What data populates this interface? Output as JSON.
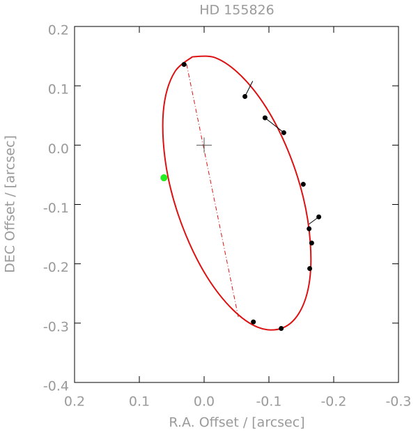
{
  "chart_data": {
    "type": "scatter",
    "title": "HD 155826",
    "xlabel": "R.A. Offset / [arcsec]",
    "ylabel": "DEC Offset / [arcsec]",
    "xlim": [
      0.2,
      -0.3
    ],
    "ylim": [
      -0.4,
      0.2
    ],
    "xticks": [
      0.2,
      0.1,
      {
        "value": 0,
        "label": "0.0"
      },
      -0.1,
      -0.2,
      -0.3
    ],
    "yticks": [
      -0.4,
      -0.3,
      -0.2,
      -0.1,
      {
        "value": 0,
        "label": "0.0"
      },
      0.1,
      0.2
    ],
    "series": [
      {
        "color": "#000000",
        "x": [
          0.031,
          -0.063,
          -0.094,
          -0.123,
          -0.153,
          -0.177,
          -0.162,
          -0.166,
          -0.163,
          -0.076,
          -0.119
        ],
        "y": [
          0.136,
          0.082,
          0.046,
          0.021,
          -0.066,
          -0.121,
          -0.141,
          -0.165,
          -0.208,
          -0.298,
          -0.309
        ]
      },
      {
        "color": "#22ee22",
        "x": [
          0.062
        ],
        "y": [
          -0.055
        ]
      }
    ],
    "orbit": {
      "color": "#dd1111",
      "x": [
        0.018,
        -0.018,
        -0.057,
        -0.096,
        -0.129,
        -0.153,
        -0.164,
        -0.162,
        -0.146,
        -0.119,
        -0.083,
        -0.044,
        -0.005,
        0.028,
        0.052,
        0.063,
        0.061,
        0.045,
        0.018
      ],
      "y": [
        0.149,
        0.147,
        0.117,
        0.063,
        -0.008,
        -0.088,
        -0.166,
        -0.234,
        -0.284,
        -0.309,
        -0.307,
        -0.277,
        -0.223,
        -0.152,
        -0.072,
        0.006,
        0.074,
        0.124,
        0.149
      ]
    },
    "residuals": [
      {
        "x": [
          -0.063,
          -0.075
        ],
        "y": [
          0.082,
          0.108
        ]
      },
      {
        "x": [
          -0.094,
          -0.123
        ],
        "y": [
          0.046,
          0.021
        ]
      },
      {
        "x": [
          -0.177,
          -0.162
        ],
        "y": [
          -0.121,
          -0.133
        ]
      }
    ],
    "node_line": {
      "color": "#dd1111",
      "x": [
        0.027,
        -0.053
      ],
      "y": [
        0.136,
        -0.291
      ]
    },
    "center_marker": {
      "x": [
        0
      ],
      "y": [
        0
      ]
    }
  }
}
